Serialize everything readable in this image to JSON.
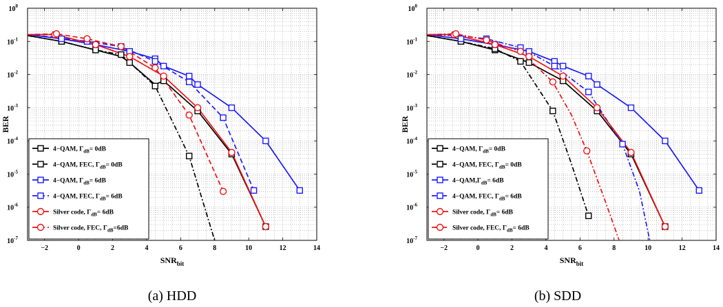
{
  "colors": {
    "black": "#000000",
    "blue": "#1a1aff",
    "red": "#ee1111"
  },
  "chart_data": [
    {
      "type": "line",
      "caption": "(a) HDD",
      "xlabel": "SNR",
      "xlabel_sub": "bit",
      "ylabel": "BER",
      "xlim": [
        -3,
        14
      ],
      "ylim": [
        1e-07,
        1
      ],
      "yscale": "log",
      "grid": true,
      "legend_position": "bottom-left",
      "xticks": [
        -2,
        0,
        2,
        4,
        6,
        8,
        10,
        12,
        14
      ],
      "yticks": [
        {
          "base": "10",
          "exp": "0",
          "value": 1
        },
        {
          "base": "10",
          "exp": "-1",
          "value": 0.1
        },
        {
          "base": "10",
          "exp": "-2",
          "value": 0.01
        },
        {
          "base": "10",
          "exp": "-3",
          "value": 0.001
        },
        {
          "base": "10",
          "exp": "-4",
          "value": 0.0001
        },
        {
          "base": "10",
          "exp": "-5",
          "value": 1e-05
        },
        {
          "base": "10",
          "exp": "-6",
          "value": 1e-06
        },
        {
          "base": "10",
          "exp": "-7",
          "value": 1e-07
        }
      ],
      "series": [
        {
          "label_pre": "4−QAM, Γ",
          "label_sub": "dB",
          "label_post": "= 0dB",
          "color": "#000000",
          "dash": "solid",
          "marker": "square",
          "x": [
            -3,
            -1,
            1,
            2.5,
            3,
            4.5,
            5,
            7,
            9,
            11
          ],
          "y": [
            0.15,
            0.1,
            0.055,
            0.035,
            0.023,
            0.005,
            0.0065,
            0.0008,
            4e-05,
            2.6e-07
          ],
          "mx": [
            -1,
            1,
            3,
            5,
            7,
            9,
            11
          ],
          "my": [
            0.1,
            0.055,
            0.023,
            0.0065,
            0.0008,
            4e-05,
            2.6e-07
          ]
        },
        {
          "label_pre": "4−QAM, FEC, Γ",
          "label_sub": "dB",
          "label_post": "= 0dB",
          "color": "#000000",
          "dash": "dashdot",
          "marker": "square",
          "x": [
            -3,
            -1,
            1,
            2.5,
            4.5,
            5.5,
            6.5,
            7.3,
            8
          ],
          "y": [
            0.15,
            0.1,
            0.055,
            0.04,
            0.0045,
            0.0004,
            3.5e-05,
            1.5e-06,
            1e-07
          ],
          "mx": [
            -1,
            1,
            2.5,
            4.5,
            6.5
          ],
          "my": [
            0.1,
            0.055,
            0.04,
            0.0045,
            3.5e-05
          ]
        },
        {
          "label_pre": "4−QAM, Γ",
          "label_sub": "dB",
          "label_post": "= 6dB",
          "color": "#1a1aff",
          "dash": "solid",
          "marker": "square",
          "x": [
            -3,
            -1,
            1,
            3,
            4.5,
            5,
            6.5,
            7,
            9,
            11,
            13
          ],
          "y": [
            0.16,
            0.12,
            0.08,
            0.05,
            0.03,
            0.018,
            0.009,
            0.005,
            0.001,
            0.0001,
            3.2e-06
          ],
          "mx": [
            -1,
            1,
            3,
            4.5,
            5,
            6.5,
            7,
            9,
            11,
            13
          ],
          "my": [
            0.12,
            0.08,
            0.05,
            0.03,
            0.018,
            0.009,
            0.005,
            0.001,
            0.0001,
            3.2e-06
          ]
        },
        {
          "label_pre": "4−QAM, FEC, Γ",
          "label_sub": "dB",
          "label_post": "= 6dB",
          "color": "#1a1aff",
          "dash": "dashed",
          "marker": "square",
          "x": [
            -3,
            -1.2,
            0.5,
            2.5,
            4.5,
            6.5,
            8.5,
            10.3
          ],
          "y": [
            0.16,
            0.13,
            0.1,
            0.07,
            0.025,
            0.006,
            0.0005,
            3.2e-06
          ],
          "mx": [
            0.5,
            2.5,
            4.5,
            6.5,
            8.5,
            10.3
          ],
          "my": [
            0.1,
            0.07,
            0.025,
            0.006,
            0.0005,
            3.2e-06
          ]
        },
        {
          "label_pre": "Silver code, Γ",
          "label_sub": "dB",
          "label_post": "= 6dB",
          "color": "#ee1111",
          "dash": "solid",
          "marker": "circle",
          "x": [
            -3,
            -1.4,
            1,
            3,
            5,
            7,
            9,
            11
          ],
          "y": [
            0.16,
            0.16,
            0.08,
            0.035,
            0.009,
            0.001,
            4.5e-05,
            2.6e-07
          ],
          "mx": [
            -1.4,
            1,
            3,
            5,
            7,
            9,
            11
          ],
          "my": [
            0.16,
            0.08,
            0.035,
            0.009,
            0.001,
            4.5e-05,
            2.6e-07
          ]
        },
        {
          "label_pre": "Silver code, FEC, Γ",
          "label_sub": "dB",
          "label_post": "=6dB",
          "color": "#ee1111",
          "dash": "dashed",
          "marker": "circle",
          "x": [
            -3,
            -1.3,
            0.5,
            2.5,
            4.5,
            6.5,
            8.5
          ],
          "y": [
            0.16,
            0.17,
            0.12,
            0.07,
            0.016,
            0.0006,
            3e-06
          ],
          "mx": [
            -1.3,
            0.5,
            2.5,
            4.5,
            6.5,
            8.5
          ],
          "my": [
            0.17,
            0.12,
            0.07,
            0.016,
            0.0006,
            3e-06
          ]
        }
      ]
    },
    {
      "type": "line",
      "caption": "(b) SDD",
      "xlabel": "SNR",
      "xlabel_sub": "bit",
      "ylabel": "BER",
      "xlim": [
        -3,
        14
      ],
      "ylim": [
        1e-07,
        1
      ],
      "yscale": "log",
      "grid": true,
      "legend_position": "bottom-left",
      "xticks": [
        -2,
        0,
        2,
        4,
        6,
        8,
        10,
        12,
        14
      ],
      "yticks": [
        {
          "base": "10",
          "exp": "0",
          "value": 1
        },
        {
          "base": "10",
          "exp": "-1",
          "value": 0.1
        },
        {
          "base": "10",
          "exp": "-2",
          "value": 0.01
        },
        {
          "base": "10",
          "exp": "-3",
          "value": 0.001
        },
        {
          "base": "10",
          "exp": "-4",
          "value": 0.0001
        },
        {
          "base": "10",
          "exp": "-5",
          "value": 1e-05
        },
        {
          "base": "10",
          "exp": "-6",
          "value": 1e-06
        },
        {
          "base": "10",
          "exp": "-7",
          "value": 1e-07
        }
      ],
      "series": [
        {
          "label_pre": "4−QAM, Γ",
          "label_sub": "dB",
          "label_post": "= 0dB",
          "color": "#000000",
          "dash": "solid",
          "marker": "square",
          "x": [
            -3,
            -1,
            1,
            3,
            5,
            7,
            9,
            11
          ],
          "y": [
            0.15,
            0.1,
            0.055,
            0.023,
            0.0065,
            0.0008,
            4e-05,
            2.6e-07
          ],
          "mx": [
            -1,
            1,
            3,
            5,
            7,
            9,
            11
          ],
          "my": [
            0.1,
            0.055,
            0.023,
            0.0065,
            0.0008,
            4e-05,
            2.6e-07
          ]
        },
        {
          "label_pre": "4−QAM, FEC, Γ",
          "label_sub": "dB",
          "label_post": "= 0dB",
          "color": "#000000",
          "dash": "dashdot",
          "marker": "square",
          "x": [
            -3,
            -1,
            1,
            2.5,
            4.4,
            5.5,
            6.5
          ],
          "y": [
            0.15,
            0.1,
            0.06,
            0.025,
            0.0008,
            2e-05,
            5.5e-07
          ],
          "mx": [
            -1,
            1,
            2.5,
            4.4,
            6.5
          ],
          "my": [
            0.1,
            0.06,
            0.025,
            0.0008,
            5.5e-07
          ]
        },
        {
          "label_pre": "4−QAM,Γ",
          "label_sub": "dB",
          "label_post": "= 6dB",
          "color": "#1a1aff",
          "dash": "solid",
          "marker": "square",
          "x": [
            -3,
            -1,
            1,
            3,
            4.5,
            5,
            6.5,
            7,
            9,
            11,
            13
          ],
          "y": [
            0.16,
            0.12,
            0.08,
            0.05,
            0.025,
            0.018,
            0.009,
            0.005,
            0.001,
            0.0001,
            3.2e-06
          ],
          "mx": [
            -1,
            1,
            3,
            4.5,
            5,
            6.5,
            7,
            9,
            11,
            13
          ],
          "my": [
            0.12,
            0.08,
            0.05,
            0.025,
            0.018,
            0.009,
            0.005,
            0.001,
            0.0001,
            3.2e-06
          ]
        },
        {
          "label_pre": "4−QAM, FEC, Γ",
          "label_sub": "dB",
          "label_post": "= 6dB",
          "color": "#1a1aff",
          "dash": "dashdot",
          "marker": "square",
          "x": [
            -3,
            -1.2,
            0.5,
            2.5,
            4.5,
            6.5,
            8.5,
            9.5,
            10.1
          ],
          "y": [
            0.16,
            0.15,
            0.12,
            0.065,
            0.018,
            0.003,
            8e-05,
            3e-06,
            1e-07
          ],
          "mx": [
            0.5,
            2.5,
            4.5,
            6.5,
            8.5
          ],
          "my": [
            0.12,
            0.065,
            0.018,
            0.003,
            8e-05
          ]
        },
        {
          "label_pre": "Silver code, Γ",
          "label_sub": "dB",
          "label_post": "= 6dB",
          "color": "#ee1111",
          "dash": "solid",
          "marker": "circle",
          "x": [
            -3,
            -1.4,
            1,
            3,
            5,
            7,
            9,
            11
          ],
          "y": [
            0.16,
            0.16,
            0.08,
            0.035,
            0.009,
            0.001,
            4.5e-05,
            2.6e-07
          ],
          "mx": [
            -1.4,
            1,
            3,
            5,
            7,
            9,
            11
          ],
          "my": [
            0.16,
            0.08,
            0.035,
            0.009,
            0.001,
            4.5e-05,
            2.6e-07
          ]
        },
        {
          "label_pre": "Silver code, FEC, Γ",
          "label_sub": "dB",
          "label_post": "= 6dB",
          "color": "#ee1111",
          "dash": "dashdot",
          "marker": "circle",
          "x": [
            -3,
            -1.3,
            0.5,
            2.5,
            4.4,
            5.5,
            6.4,
            7.4,
            8.3
          ],
          "y": [
            0.16,
            0.17,
            0.11,
            0.05,
            0.006,
            0.0006,
            5e-05,
            2e-06,
            1e-07
          ],
          "mx": [
            -1.3,
            0.5,
            2.5,
            4.4,
            6.4
          ],
          "my": [
            0.17,
            0.11,
            0.05,
            0.006,
            5e-05
          ]
        }
      ]
    }
  ]
}
